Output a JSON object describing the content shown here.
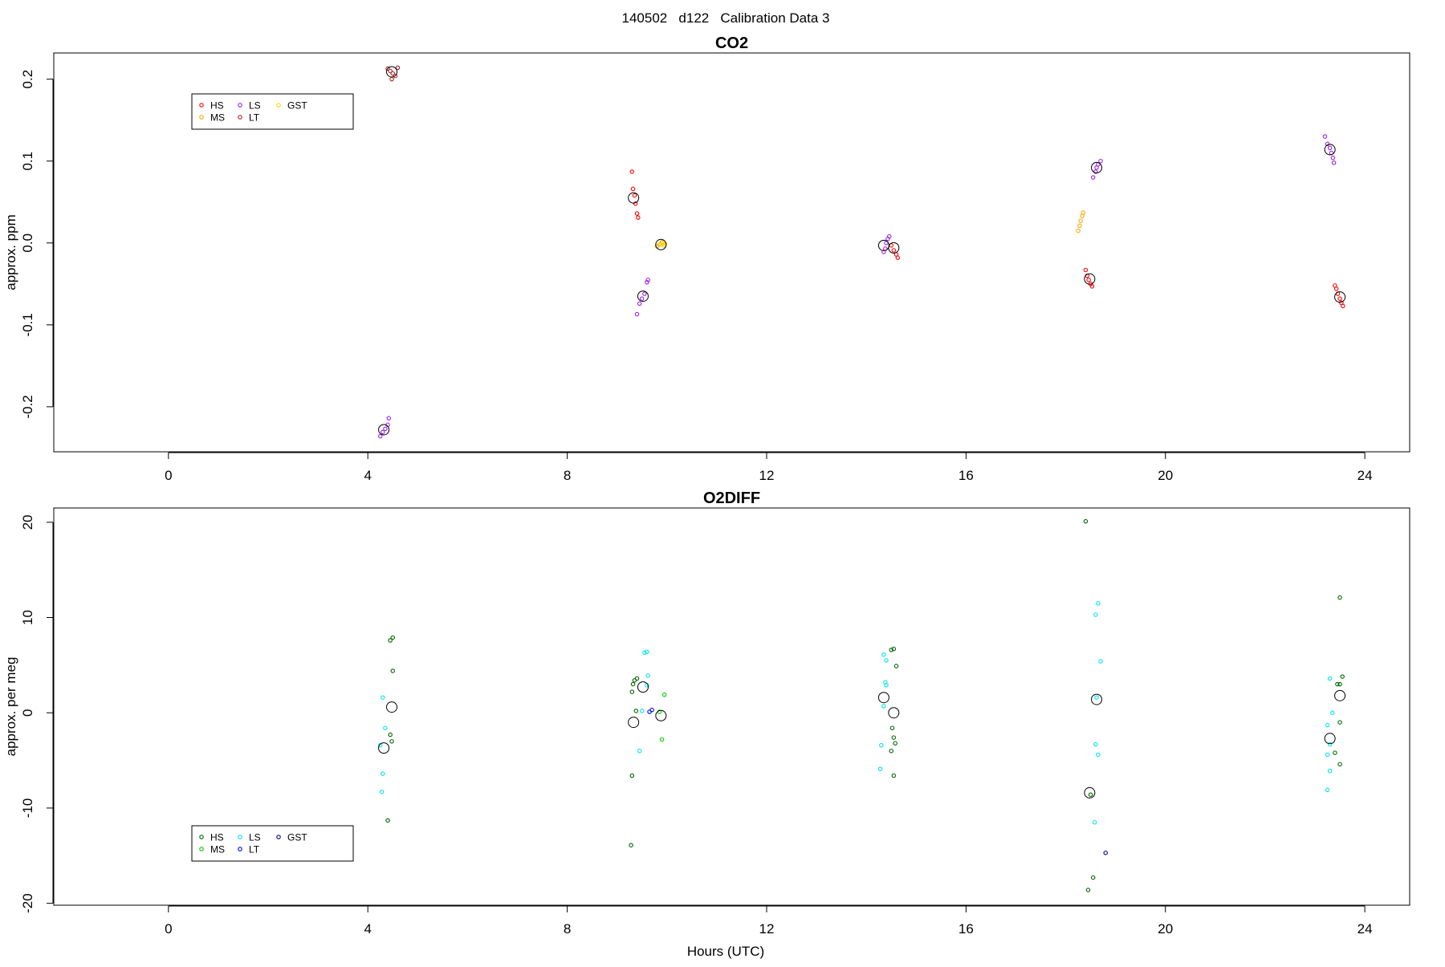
{
  "page_title": "140502   d122   Calibration Data 3",
  "x_axis": {
    "label": "Hours (UTC)",
    "range": [
      -2.3,
      24.9
    ],
    "ticks": [
      0,
      4,
      8,
      12,
      16,
      20,
      24
    ]
  },
  "chart_data": [
    {
      "type": "scatter",
      "title": "CO2",
      "ylabel": "approx. ppm",
      "xlabel": "",
      "xlim": [
        -2.3,
        24.9
      ],
      "ylim": [
        -0.255,
        0.232
      ],
      "yticks": [
        -0.2,
        -0.1,
        0.0,
        0.1,
        0.2
      ],
      "ytick_labels": [
        "-0.2",
        "-0.1",
        "0.0",
        "0.1",
        "0.2"
      ],
      "grid": false,
      "legend": {
        "placement": "top-left",
        "entries": [
          {
            "name": "HS",
            "color": "#ff0000"
          },
          {
            "name": "LS",
            "color": "#a020f0"
          },
          {
            "name": "GST",
            "color": "#ffd700"
          },
          {
            "name": "MS",
            "color": "#ffa500"
          },
          {
            "name": "LT",
            "color": "#b22222"
          }
        ]
      },
      "series": [
        {
          "name": "HS",
          "color": "#ff0000",
          "points": [
            [
              9.3,
              0.087
            ],
            [
              9.32,
              0.066
            ],
            [
              9.35,
              0.058
            ],
            [
              9.37,
              0.048
            ],
            [
              9.4,
              0.036
            ],
            [
              9.42,
              0.031
            ],
            [
              18.4,
              -0.033
            ],
            [
              18.43,
              -0.04
            ],
            [
              18.46,
              -0.045
            ],
            [
              18.5,
              -0.05
            ],
            [
              18.53,
              -0.053
            ],
            [
              23.4,
              -0.052
            ],
            [
              23.43,
              -0.056
            ],
            [
              23.46,
              -0.062
            ],
            [
              23.5,
              -0.068
            ],
            [
              23.53,
              -0.073
            ],
            [
              23.56,
              -0.077
            ],
            [
              14.5,
              -0.003
            ],
            [
              14.55,
              -0.009
            ],
            [
              14.6,
              -0.014
            ],
            [
              14.63,
              -0.018
            ]
          ]
        },
        {
          "name": "LS",
          "color": "#a020f0",
          "points": [
            [
              4.25,
              -0.236
            ],
            [
              4.3,
              -0.231
            ],
            [
              4.35,
              -0.227
            ],
            [
              4.4,
              -0.222
            ],
            [
              4.42,
              -0.214
            ],
            [
              9.4,
              -0.087
            ],
            [
              9.45,
              -0.074
            ],
            [
              9.5,
              -0.068
            ],
            [
              9.55,
              -0.062
            ],
            [
              9.6,
              -0.048
            ],
            [
              9.62,
              -0.045
            ],
            [
              14.35,
              -0.011
            ],
            [
              14.38,
              -0.007
            ],
            [
              14.4,
              0.0
            ],
            [
              14.43,
              0.005
            ],
            [
              14.46,
              0.008
            ],
            [
              18.55,
              0.08
            ],
            [
              18.6,
              0.087
            ],
            [
              18.62,
              0.092
            ],
            [
              18.65,
              0.096
            ],
            [
              18.7,
              0.1
            ],
            [
              23.2,
              0.13
            ],
            [
              23.25,
              0.121
            ],
            [
              23.3,
              0.116
            ],
            [
              23.33,
              0.11
            ],
            [
              23.36,
              0.104
            ],
            [
              23.38,
              0.098
            ]
          ]
        },
        {
          "name": "MS",
          "color": "#ffa500",
          "points": [
            [
              18.25,
              0.015
            ],
            [
              18.28,
              0.021
            ],
            [
              18.3,
              0.027
            ],
            [
              18.33,
              0.033
            ],
            [
              18.35,
              0.037
            ],
            [
              9.8,
              -0.004
            ],
            [
              9.85,
              -0.002
            ],
            [
              9.9,
              0.001
            ],
            [
              9.95,
              -0.003
            ]
          ]
        },
        {
          "name": "LT",
          "color": "#b22222",
          "points": [
            [
              4.4,
              0.213
            ],
            [
              4.45,
              0.21
            ],
            [
              4.5,
              0.207
            ],
            [
              4.55,
              0.204
            ],
            [
              4.6,
              0.214
            ],
            [
              4.48,
              0.2
            ]
          ]
        },
        {
          "name": "GST",
          "color": "#ffd700",
          "points": [
            [
              9.88,
              -0.002
            ],
            [
              9.92,
              0.0
            ],
            [
              9.96,
              -0.001
            ]
          ]
        }
      ],
      "means": [
        [
          4.48,
          0.209
        ],
        [
          4.32,
          -0.228
        ],
        [
          9.33,
          0.055
        ],
        [
          9.52,
          -0.065
        ],
        [
          9.88,
          -0.002
        ],
        [
          14.35,
          -0.003
        ],
        [
          14.55,
          -0.006
        ],
        [
          18.48,
          -0.044
        ],
        [
          18.62,
          0.092
        ],
        [
          23.3,
          0.114
        ],
        [
          23.5,
          -0.066
        ]
      ]
    },
    {
      "type": "scatter",
      "title": "O2DIFF",
      "ylabel": "approx. per meg",
      "xlabel": "Hours (UTC)",
      "xlim": [
        -2.3,
        24.9
      ],
      "ylim": [
        -20.2,
        21.5
      ],
      "yticks": [
        -20,
        -10,
        0,
        10,
        20
      ],
      "ytick_labels": [
        "-20",
        "-10",
        "0",
        "10",
        "20"
      ],
      "grid": false,
      "legend": {
        "placement": "bottom-left",
        "entries": [
          {
            "name": "HS",
            "color": "#006400"
          },
          {
            "name": "LS",
            "color": "#00e5ee"
          },
          {
            "name": "GST",
            "color": "#00008b"
          },
          {
            "name": "MS",
            "color": "#00cd00"
          },
          {
            "name": "LT",
            "color": "#0000ff"
          }
        ]
      },
      "series": [
        {
          "name": "HS",
          "color": "#006400",
          "points": [
            [
              4.45,
              7.6
            ],
            [
              4.5,
              7.9
            ],
            [
              4.5,
              4.4
            ],
            [
              4.45,
              -2.3
            ],
            [
              4.48,
              -3.0
            ],
            [
              4.4,
              -11.3
            ],
            [
              9.3,
              2.2
            ],
            [
              9.32,
              3.0
            ],
            [
              9.35,
              3.4
            ],
            [
              9.4,
              3.6
            ],
            [
              9.38,
              0.2
            ],
            [
              9.3,
              -6.6
            ],
            [
              9.28,
              -13.9
            ],
            [
              14.5,
              6.6
            ],
            [
              14.55,
              6.7
            ],
            [
              14.6,
              4.9
            ],
            [
              14.52,
              -1.6
            ],
            [
              14.55,
              -2.6
            ],
            [
              14.58,
              -3.2
            ],
            [
              14.5,
              -4.0
            ],
            [
              14.55,
              -6.6
            ],
            [
              18.4,
              20.1
            ],
            [
              18.5,
              -8.6
            ],
            [
              18.55,
              -17.3
            ],
            [
              18.45,
              -18.6
            ],
            [
              23.45,
              3.0
            ],
            [
              23.5,
              3.0
            ],
            [
              23.55,
              3.8
            ],
            [
              23.5,
              -1.0
            ],
            [
              23.4,
              -4.2
            ],
            [
              23.5,
              -5.4
            ],
            [
              23.5,
              12.1
            ]
          ]
        },
        {
          "name": "LS",
          "color": "#00e5ee",
          "points": [
            [
              4.3,
              1.6
            ],
            [
              4.35,
              -1.6
            ],
            [
              4.25,
              -3.4
            ],
            [
              4.3,
              -6.4
            ],
            [
              4.28,
              -8.3
            ],
            [
              9.55,
              6.3
            ],
            [
              9.6,
              6.4
            ],
            [
              9.62,
              3.9
            ],
            [
              9.6,
              2.9
            ],
            [
              9.5,
              0.2
            ],
            [
              9.45,
              -4.0
            ],
            [
              14.35,
              6.1
            ],
            [
              14.4,
              5.5
            ],
            [
              14.38,
              3.2
            ],
            [
              14.4,
              2.9
            ],
            [
              14.35,
              0.7
            ],
            [
              14.3,
              -3.4
            ],
            [
              14.28,
              -5.9
            ],
            [
              18.65,
              11.5
            ],
            [
              18.6,
              10.3
            ],
            [
              18.7,
              5.4
            ],
            [
              18.62,
              1.6
            ],
            [
              18.6,
              -3.3
            ],
            [
              18.65,
              -4.4
            ],
            [
              18.58,
              -11.5
            ],
            [
              23.3,
              3.6
            ],
            [
              23.35,
              0.0
            ],
            [
              23.25,
              -1.3
            ],
            [
              23.3,
              -3.3
            ],
            [
              23.25,
              -4.4
            ],
            [
              23.3,
              -6.1
            ],
            [
              23.25,
              -8.1
            ]
          ]
        },
        {
          "name": "MS",
          "color": "#00cd00",
          "points": [
            [
              9.95,
              1.9
            ],
            [
              9.9,
              -2.8
            ],
            [
              9.85,
              0.1
            ]
          ]
        },
        {
          "name": "LT",
          "color": "#0000ff",
          "points": [
            [
              9.65,
              0.1
            ],
            [
              9.7,
              0.3
            ]
          ]
        },
        {
          "name": "GST",
          "color": "#00008b",
          "points": [
            [
              18.8,
              -14.7
            ]
          ]
        }
      ],
      "means": [
        [
          4.48,
          0.6
        ],
        [
          4.32,
          -3.7
        ],
        [
          9.33,
          -1.0
        ],
        [
          9.52,
          2.7
        ],
        [
          9.88,
          -0.3
        ],
        [
          14.35,
          1.6
        ],
        [
          14.55,
          0.0
        ],
        [
          18.48,
          -8.4
        ],
        [
          18.62,
          1.4
        ],
        [
          23.3,
          -2.7
        ],
        [
          23.5,
          1.8
        ]
      ]
    }
  ]
}
